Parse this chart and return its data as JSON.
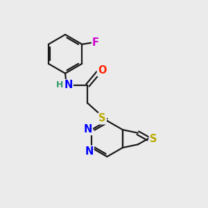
{
  "background_color": "#ebebeb",
  "bond_color": "#1a1a1a",
  "atom_colors": {
    "N": "#0000ff",
    "O": "#ff2200",
    "S_thioether": "#bbaa00",
    "S_thiophene": "#bbaa00",
    "F": "#cc00cc",
    "H": "#339966",
    "C": "#1a1a1a"
  },
  "figsize": [
    3.0,
    3.0
  ],
  "dpi": 100,
  "lw": 1.6,
  "fs": 10.5
}
